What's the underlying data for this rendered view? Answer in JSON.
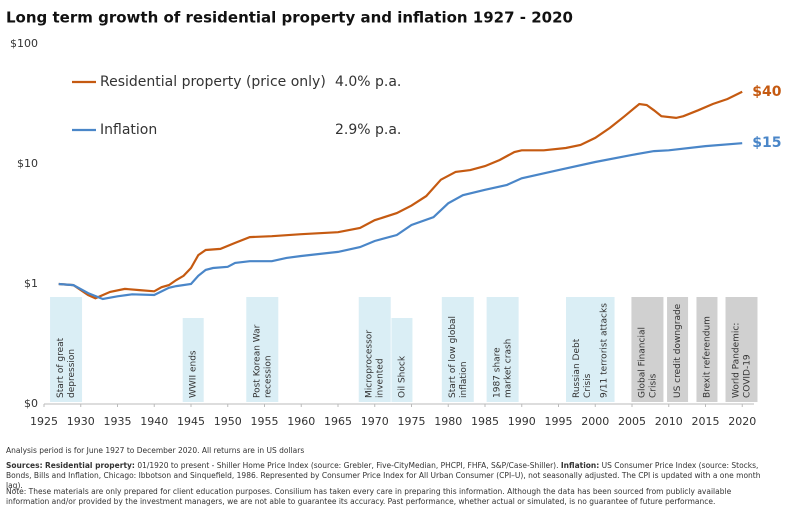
{
  "chart_data": {
    "type": "line",
    "title": "Long term growth of residential property and inflation 1927 - 2020",
    "log_y": true,
    "grid": false,
    "xlim": [
      1925,
      2021.6
    ],
    "xticks": [
      1925,
      1930,
      1935,
      1940,
      1945,
      1950,
      1955,
      1960,
      1965,
      1970,
      1975,
      1980,
      1985,
      1990,
      1995,
      2000,
      2005,
      2010,
      2015,
      2020
    ],
    "ylim": [
      0.1,
      100
    ],
    "yticks": [
      {
        "value": 0.1,
        "label": "$0"
      },
      {
        "value": 1,
        "label": "$1"
      },
      {
        "value": 10,
        "label": "$10"
      },
      {
        "value": 100,
        "label": "$100"
      }
    ],
    "series": [
      {
        "name": "Residential property (price only)",
        "rate_label": "4.0% p.a.",
        "end_label": "$40",
        "color": "#c55a11",
        "x": [
          1927,
          1929,
          1931,
          1932,
          1934,
          1936,
          1938,
          1940,
          1941,
          1942,
          1943,
          1944,
          1945,
          1946,
          1947,
          1949,
          1951,
          1953,
          1956,
          1960,
          1965,
          1968,
          1970,
          1973,
          1975,
          1977,
          1979,
          1981,
          1983,
          1985,
          1987,
          1989,
          1990,
          1993,
          1996,
          1998,
          2000,
          2002,
          2004,
          2006,
          2007,
          2008,
          2009,
          2011,
          2012,
          2014,
          2016,
          2018,
          2020
        ],
        "values": [
          1.0,
          0.98,
          0.81,
          0.76,
          0.86,
          0.91,
          0.89,
          0.87,
          0.94,
          0.98,
          1.08,
          1.17,
          1.36,
          1.74,
          1.92,
          1.96,
          2.2,
          2.46,
          2.5,
          2.6,
          2.7,
          2.93,
          3.4,
          3.9,
          4.5,
          5.4,
          7.4,
          8.6,
          8.9,
          9.6,
          10.8,
          12.6,
          13,
          13,
          13.6,
          14.4,
          16.5,
          20,
          25,
          31.6,
          31,
          28,
          25,
          24.2,
          25,
          28,
          31.6,
          34.8,
          40
        ]
      },
      {
        "name": "Inflation",
        "rate_label": "2.9% p.a.",
        "end_label": "$15",
        "color": "#4a86c8",
        "x": [
          1927,
          1929,
          1931,
          1933,
          1935,
          1937,
          1940,
          1942,
          1943,
          1945,
          1946,
          1947,
          1948,
          1950,
          1951,
          1953,
          1956,
          1958,
          1960,
          1965,
          1968,
          1970,
          1973,
          1975,
          1978,
          1980,
          1982,
          1985,
          1988,
          1990,
          1995,
          2000,
          2005,
          2008,
          2010,
          2015,
          2020
        ],
        "values": [
          1.0,
          0.98,
          0.84,
          0.75,
          0.79,
          0.82,
          0.81,
          0.93,
          0.96,
          1.0,
          1.17,
          1.31,
          1.36,
          1.39,
          1.5,
          1.55,
          1.55,
          1.65,
          1.71,
          1.85,
          2.03,
          2.28,
          2.56,
          3.1,
          3.6,
          4.7,
          5.5,
          6.1,
          6.7,
          7.6,
          8.9,
          10.4,
          11.9,
          12.8,
          13,
          14.1,
          14.9
        ]
      }
    ],
    "annotations": [
      {
        "x": 1928,
        "label": [
          "Start of great",
          "depression"
        ],
        "color": "#daeef5"
      },
      {
        "x": 1945.3,
        "label": [
          "WWII ends"
        ],
        "color": "#daeef5"
      },
      {
        "x": 1954.7,
        "label": [
          "Post Korean War",
          "recession"
        ],
        "color": "#daeef5"
      },
      {
        "x": 1970,
        "label": [
          "Microprocessor",
          "invented"
        ],
        "color": "#daeef5"
      },
      {
        "x": 1973.7,
        "label": [
          "Oil Shock"
        ],
        "color": "#daeef5"
      },
      {
        "x": 1981.3,
        "label": [
          "Start of low global",
          "inflation"
        ],
        "color": "#daeef5"
      },
      {
        "x": 1987.4,
        "label": [
          "1987 share",
          "market crash"
        ],
        "color": "#daeef5"
      },
      {
        "x": 1998.2,
        "label": [
          "Russian Debt",
          "Crisis"
        ],
        "color": "#daeef5"
      },
      {
        "x": 2001.2,
        "label": [
          "9/11 terrorist attacks"
        ],
        "color": "#daeef5"
      },
      {
        "x": 2007.1,
        "label": [
          "Global Financial",
          "Crisis"
        ],
        "color": "#d0d0d0"
      },
      {
        "x": 2011.2,
        "label": [
          "US credit downgrade"
        ],
        "color": "#d0d0d0"
      },
      {
        "x": 2015.2,
        "label": [
          "Brexit referendum"
        ],
        "color": "#d0d0d0"
      },
      {
        "x": 2019.9,
        "label": [
          "World Pandemic:",
          "COVID-19"
        ],
        "color": "#d0d0d0"
      }
    ]
  },
  "footer": {
    "period": "Analysis period is for June 1927 to December 2020.  All returns are in US dollars",
    "sources_label": "Sources:",
    "property_label": "Residential property:",
    "property_text": " 01/1920 to present - Shiller Home Price Index (source: Grebler, Five-CityMedian, PHCPI, FHFA, S&P/Case-Shiller). ",
    "inflation_label": "Inflation:",
    "inflation_text": " US Consumer Price Index (source: Stocks, Bonds, Bills and Inflation, Chicago: Ibbotson and Sinquefield, 1986. Represented by Consumer Price Index for All Urban Consumer (CPI–U), not seasonally adjusted.  The CPI is updated with a one month lag).",
    "note": "Note: These materials are only prepared for client education purposes.  Consilium has taken every care in preparing this information.  Although the data has been sourced from publicly available information and/or provided by the investment managers, we are not able to guarantee its accuracy.  Past performance, whether actual or simulated, is no guarantee of future performance."
  }
}
